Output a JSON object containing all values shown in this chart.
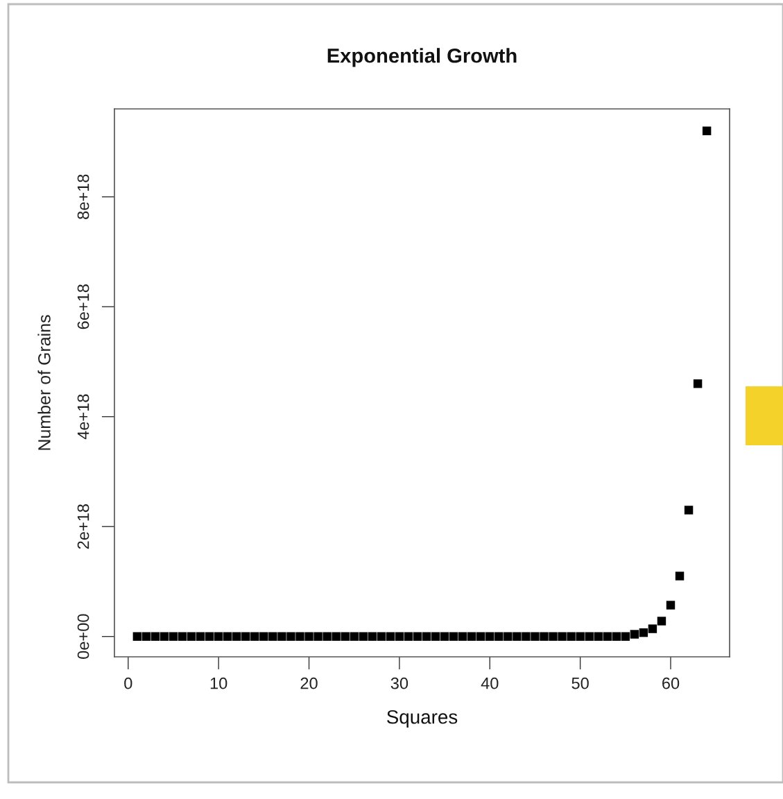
{
  "chart_data": {
    "type": "scatter",
    "title": "Exponential Growth",
    "xlabel": "Squares",
    "ylabel": "Number of Grains",
    "x": [
      1,
      2,
      3,
      4,
      5,
      6,
      7,
      8,
      9,
      10,
      11,
      12,
      13,
      14,
      15,
      16,
      17,
      18,
      19,
      20,
      21,
      22,
      23,
      24,
      25,
      26,
      27,
      28,
      29,
      30,
      31,
      32,
      33,
      34,
      35,
      36,
      37,
      38,
      39,
      40,
      41,
      42,
      43,
      44,
      45,
      46,
      47,
      48,
      49,
      50,
      51,
      52,
      53,
      54,
      55,
      56,
      57,
      58,
      59,
      60,
      61,
      62,
      63,
      64
    ],
    "values": [
      0,
      0,
      0,
      0,
      0,
      0,
      0,
      0,
      0,
      0,
      0,
      0,
      0,
      0,
      0,
      0,
      0,
      0,
      0,
      0,
      0,
      0,
      0,
      0,
      0,
      0,
      0,
      0,
      0,
      0,
      0,
      0,
      0,
      0,
      0,
      0,
      0,
      0,
      0,
      0,
      0,
      0,
      0,
      0,
      0,
      0,
      0,
      0,
      0,
      0,
      0,
      0,
      0,
      0,
      0,
      4e+16,
      7e+16,
      1.4e+17,
      2.8e+17,
      5.7e+17,
      1.1e+18,
      2.3e+18,
      4.6e+18,
      9.2e+18
    ],
    "color": "#000000",
    "marker": "square",
    "grid": false,
    "xlim": [
      -1.52,
      66.52
    ],
    "ylim": [
      -3.7e+17,
      9.6e+18
    ],
    "xticks": [
      0,
      10,
      20,
      30,
      40,
      50,
      60
    ],
    "yticks": [
      {
        "value": 0,
        "label": "0e+00"
      },
      {
        "value": 2e+18,
        "label": "2e+18"
      },
      {
        "value": 4e+18,
        "label": "4e+18"
      },
      {
        "value": 6e+18,
        "label": "6e+18"
      },
      {
        "value": 8e+18,
        "label": "8e+18"
      }
    ]
  }
}
